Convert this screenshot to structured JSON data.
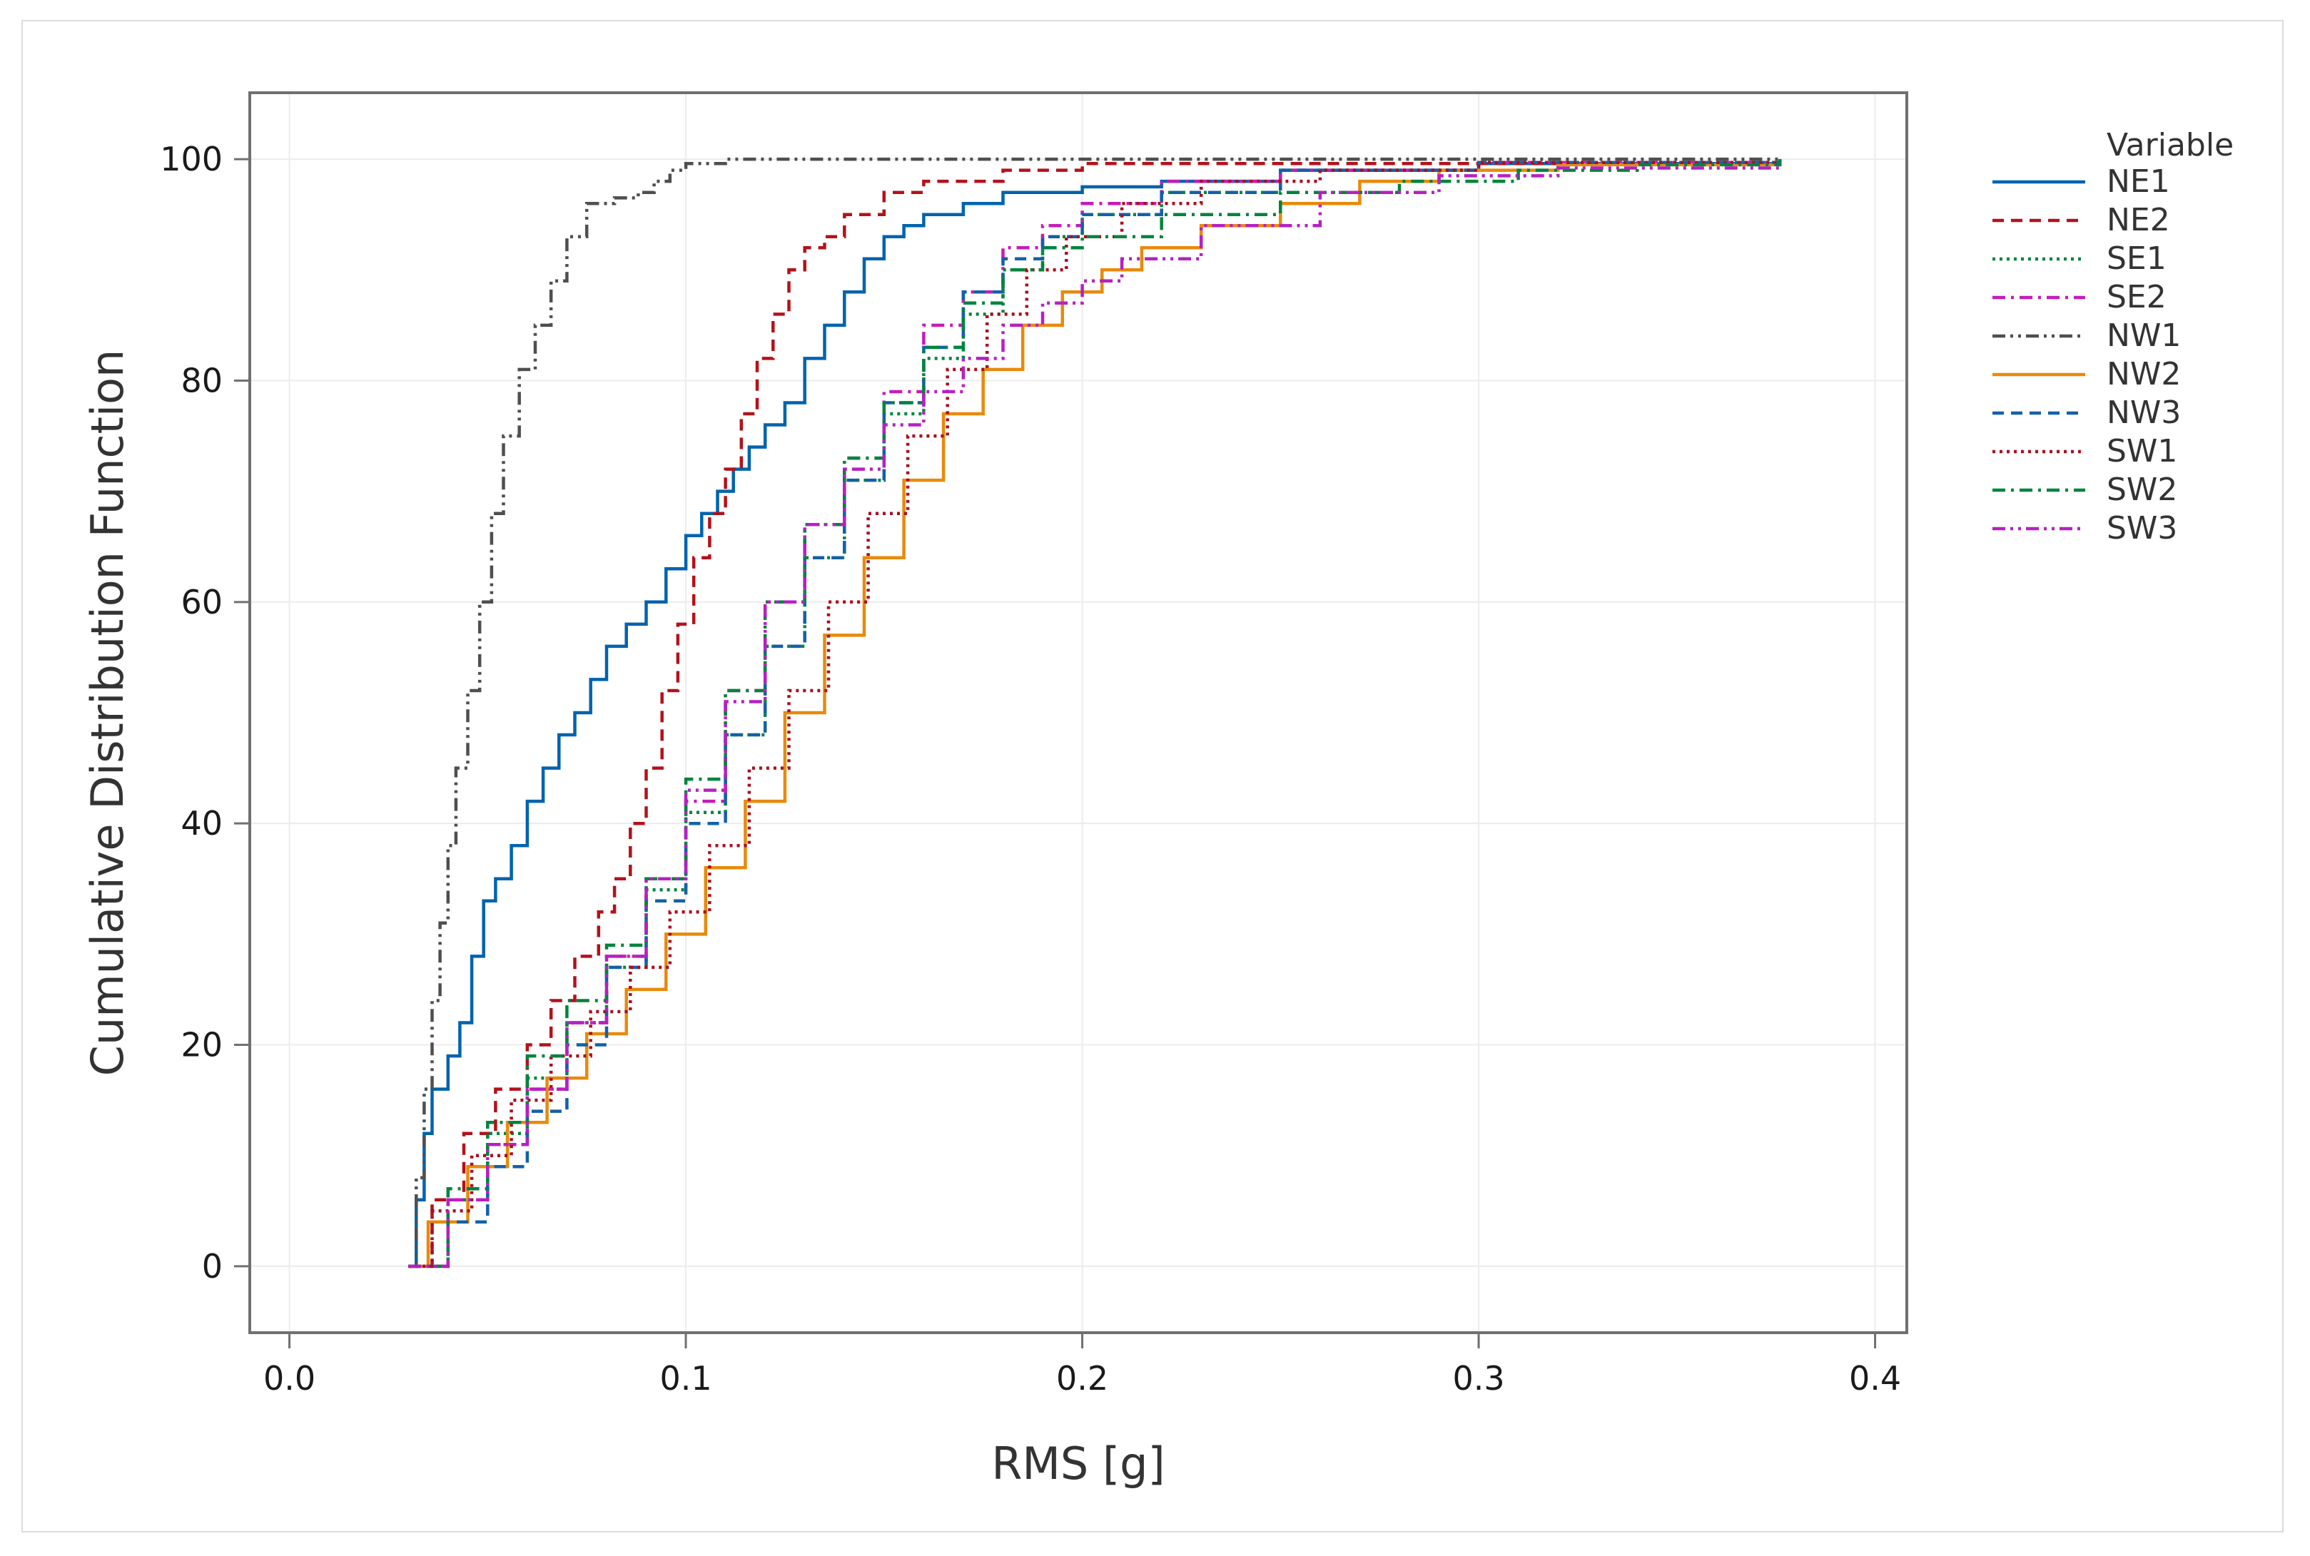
{
  "chart_data": {
    "type": "line",
    "subtype": "empirical-cdf",
    "xlabel": "RMS [g]",
    "ylabel": "Cumulative Distribution Function",
    "xlim": [
      -0.01,
      0.408
    ],
    "ylim": [
      -6,
      106
    ],
    "xticks": [
      0.0,
      0.1,
      0.2,
      0.3,
      0.4
    ],
    "xtick_labels": [
      "0.0",
      "0.1",
      "0.2",
      "0.3",
      "0.4"
    ],
    "yticks": [
      0,
      20,
      40,
      60,
      80,
      100
    ],
    "ytick_labels": [
      "0",
      "20",
      "40",
      "60",
      "80",
      "100"
    ],
    "grid": true,
    "legend": {
      "title": "Variable",
      "position": "right-top"
    },
    "series": [
      {
        "name": "NE1",
        "color": "#0063AE",
        "dash": "solid",
        "points": [
          [
            0.03,
            0
          ],
          [
            0.032,
            6
          ],
          [
            0.034,
            12
          ],
          [
            0.036,
            16
          ],
          [
            0.04,
            19
          ],
          [
            0.043,
            22
          ],
          [
            0.046,
            28
          ],
          [
            0.049,
            33
          ],
          [
            0.052,
            35
          ],
          [
            0.056,
            38
          ],
          [
            0.06,
            42
          ],
          [
            0.064,
            45
          ],
          [
            0.068,
            48
          ],
          [
            0.072,
            50
          ],
          [
            0.076,
            53
          ],
          [
            0.08,
            56
          ],
          [
            0.085,
            58
          ],
          [
            0.09,
            60
          ],
          [
            0.095,
            63
          ],
          [
            0.1,
            66
          ],
          [
            0.104,
            68
          ],
          [
            0.108,
            70
          ],
          [
            0.112,
            72
          ],
          [
            0.116,
            74
          ],
          [
            0.12,
            76
          ],
          [
            0.125,
            78
          ],
          [
            0.13,
            82
          ],
          [
            0.135,
            85
          ],
          [
            0.14,
            88
          ],
          [
            0.145,
            91
          ],
          [
            0.15,
            93
          ],
          [
            0.155,
            94
          ],
          [
            0.16,
            95
          ],
          [
            0.17,
            96
          ],
          [
            0.18,
            97
          ],
          [
            0.2,
            97.5
          ],
          [
            0.22,
            98
          ],
          [
            0.25,
            99
          ],
          [
            0.3,
            99.6
          ],
          [
            0.376,
            100
          ]
        ]
      },
      {
        "name": "NE2",
        "color": "#B3121B",
        "dash": "dashed",
        "points": [
          [
            0.03,
            0
          ],
          [
            0.036,
            6
          ],
          [
            0.044,
            12
          ],
          [
            0.052,
            16
          ],
          [
            0.06,
            20
          ],
          [
            0.066,
            24
          ],
          [
            0.072,
            28
          ],
          [
            0.078,
            32
          ],
          [
            0.082,
            35
          ],
          [
            0.086,
            40
          ],
          [
            0.09,
            45
          ],
          [
            0.094,
            52
          ],
          [
            0.098,
            58
          ],
          [
            0.102,
            64
          ],
          [
            0.106,
            68
          ],
          [
            0.11,
            72
          ],
          [
            0.114,
            77
          ],
          [
            0.118,
            82
          ],
          [
            0.122,
            86
          ],
          [
            0.126,
            90
          ],
          [
            0.13,
            92
          ],
          [
            0.135,
            93
          ],
          [
            0.14,
            95
          ],
          [
            0.15,
            97
          ],
          [
            0.16,
            98
          ],
          [
            0.18,
            99
          ],
          [
            0.2,
            99.6
          ],
          [
            0.376,
            100
          ]
        ]
      },
      {
        "name": "SE1",
        "color": "#00863E",
        "dash": "dotted",
        "points": [
          [
            0.03,
            0
          ],
          [
            0.04,
            6
          ],
          [
            0.05,
            12
          ],
          [
            0.06,
            17
          ],
          [
            0.07,
            22
          ],
          [
            0.08,
            27
          ],
          [
            0.09,
            34
          ],
          [
            0.1,
            41
          ],
          [
            0.11,
            48
          ],
          [
            0.12,
            56
          ],
          [
            0.13,
            64
          ],
          [
            0.14,
            71
          ],
          [
            0.15,
            77
          ],
          [
            0.16,
            82
          ],
          [
            0.17,
            86
          ],
          [
            0.18,
            90
          ],
          [
            0.19,
            93
          ],
          [
            0.2,
            95
          ],
          [
            0.22,
            97
          ],
          [
            0.25,
            99
          ],
          [
            0.3,
            99.7
          ],
          [
            0.376,
            100
          ]
        ]
      },
      {
        "name": "SE2",
        "color": "#C51CB8",
        "dash": "dashdot",
        "points": [
          [
            0.03,
            0
          ],
          [
            0.04,
            6
          ],
          [
            0.05,
            11
          ],
          [
            0.06,
            16
          ],
          [
            0.07,
            22
          ],
          [
            0.08,
            28
          ],
          [
            0.09,
            35
          ],
          [
            0.1,
            42
          ],
          [
            0.11,
            52
          ],
          [
            0.12,
            60
          ],
          [
            0.13,
            67
          ],
          [
            0.14,
            73
          ],
          [
            0.15,
            79
          ],
          [
            0.16,
            85
          ],
          [
            0.17,
            88
          ],
          [
            0.18,
            92
          ],
          [
            0.19,
            94
          ],
          [
            0.2,
            96
          ],
          [
            0.22,
            98
          ],
          [
            0.25,
            99
          ],
          [
            0.3,
            99.7
          ],
          [
            0.376,
            100
          ]
        ]
      },
      {
        "name": "NW1",
        "color": "#4F4F4F",
        "dash": "dashdotdot",
        "points": [
          [
            0.03,
            0
          ],
          [
            0.032,
            8
          ],
          [
            0.034,
            16
          ],
          [
            0.036,
            24
          ],
          [
            0.038,
            31
          ],
          [
            0.04,
            38
          ],
          [
            0.042,
            45
          ],
          [
            0.045,
            52
          ],
          [
            0.048,
            60
          ],
          [
            0.051,
            68
          ],
          [
            0.054,
            75
          ],
          [
            0.058,
            81
          ],
          [
            0.062,
            85
          ],
          [
            0.066,
            89
          ],
          [
            0.07,
            93
          ],
          [
            0.075,
            96
          ],
          [
            0.082,
            96.5
          ],
          [
            0.088,
            97
          ],
          [
            0.092,
            98
          ],
          [
            0.096,
            99
          ],
          [
            0.1,
            99.6
          ],
          [
            0.11,
            100
          ],
          [
            0.376,
            100
          ]
        ]
      },
      {
        "name": "NW2",
        "color": "#E88A0C",
        "dash": "solid",
        "points": [
          [
            0.03,
            0
          ],
          [
            0.035,
            4
          ],
          [
            0.045,
            9
          ],
          [
            0.055,
            13
          ],
          [
            0.065,
            17
          ],
          [
            0.075,
            21
          ],
          [
            0.085,
            25
          ],
          [
            0.095,
            30
          ],
          [
            0.105,
            36
          ],
          [
            0.115,
            42
          ],
          [
            0.125,
            50
          ],
          [
            0.135,
            57
          ],
          [
            0.145,
            64
          ],
          [
            0.155,
            71
          ],
          [
            0.165,
            77
          ],
          [
            0.175,
            81
          ],
          [
            0.185,
            85
          ],
          [
            0.195,
            88
          ],
          [
            0.205,
            90
          ],
          [
            0.215,
            92
          ],
          [
            0.23,
            94
          ],
          [
            0.25,
            96
          ],
          [
            0.27,
            98
          ],
          [
            0.29,
            99
          ],
          [
            0.32,
            99.5
          ],
          [
            0.376,
            100
          ]
        ]
      },
      {
        "name": "NW3",
        "color": "#1560A8",
        "dash": "dashed",
        "points": [
          [
            0.03,
            0
          ],
          [
            0.04,
            4
          ],
          [
            0.05,
            9
          ],
          [
            0.06,
            14
          ],
          [
            0.07,
            20
          ],
          [
            0.08,
            27
          ],
          [
            0.09,
            33
          ],
          [
            0.1,
            40
          ],
          [
            0.11,
            48
          ],
          [
            0.12,
            56
          ],
          [
            0.13,
            64
          ],
          [
            0.14,
            71
          ],
          [
            0.15,
            78
          ],
          [
            0.16,
            83
          ],
          [
            0.17,
            88
          ],
          [
            0.18,
            91
          ],
          [
            0.19,
            93
          ],
          [
            0.2,
            95
          ],
          [
            0.22,
            97
          ],
          [
            0.25,
            99
          ],
          [
            0.3,
            99.7
          ],
          [
            0.376,
            100
          ]
        ]
      },
      {
        "name": "SW1",
        "color": "#A80F1F",
        "dash": "dotted",
        "points": [
          [
            0.03,
            0
          ],
          [
            0.036,
            5
          ],
          [
            0.046,
            10
          ],
          [
            0.056,
            15
          ],
          [
            0.066,
            19
          ],
          [
            0.076,
            23
          ],
          [
            0.086,
            27
          ],
          [
            0.096,
            32
          ],
          [
            0.106,
            38
          ],
          [
            0.116,
            45
          ],
          [
            0.126,
            52
          ],
          [
            0.136,
            60
          ],
          [
            0.146,
            68
          ],
          [
            0.156,
            75
          ],
          [
            0.166,
            81
          ],
          [
            0.176,
            86
          ],
          [
            0.186,
            90
          ],
          [
            0.196,
            93
          ],
          [
            0.21,
            96
          ],
          [
            0.23,
            98
          ],
          [
            0.26,
            99
          ],
          [
            0.3,
            99.7
          ],
          [
            0.376,
            100
          ]
        ]
      },
      {
        "name": "SW2",
        "color": "#00843D",
        "dash": "dashdot",
        "points": [
          [
            0.03,
            0
          ],
          [
            0.04,
            7
          ],
          [
            0.05,
            13
          ],
          [
            0.06,
            19
          ],
          [
            0.07,
            24
          ],
          [
            0.08,
            29
          ],
          [
            0.09,
            35
          ],
          [
            0.1,
            44
          ],
          [
            0.11,
            52
          ],
          [
            0.12,
            60
          ],
          [
            0.13,
            67
          ],
          [
            0.14,
            73
          ],
          [
            0.15,
            78
          ],
          [
            0.16,
            83
          ],
          [
            0.17,
            87
          ],
          [
            0.18,
            90
          ],
          [
            0.19,
            92
          ],
          [
            0.2,
            93
          ],
          [
            0.22,
            95
          ],
          [
            0.25,
            97
          ],
          [
            0.28,
            98
          ],
          [
            0.31,
            99
          ],
          [
            0.34,
            99.5
          ],
          [
            0.376,
            100
          ]
        ]
      },
      {
        "name": "SW3",
        "color": "#B620C3",
        "dash": "dashdotdot",
        "points": [
          [
            0.03,
            0
          ],
          [
            0.04,
            6
          ],
          [
            0.05,
            11
          ],
          [
            0.06,
            16
          ],
          [
            0.07,
            22
          ],
          [
            0.08,
            28
          ],
          [
            0.09,
            35
          ],
          [
            0.1,
            43
          ],
          [
            0.11,
            51
          ],
          [
            0.12,
            60
          ],
          [
            0.13,
            67
          ],
          [
            0.14,
            72
          ],
          [
            0.15,
            76
          ],
          [
            0.16,
            79
          ],
          [
            0.17,
            82
          ],
          [
            0.18,
            85
          ],
          [
            0.19,
            87
          ],
          [
            0.2,
            89
          ],
          [
            0.21,
            91
          ],
          [
            0.23,
            94
          ],
          [
            0.26,
            97
          ],
          [
            0.29,
            98.5
          ],
          [
            0.32,
            99.2
          ],
          [
            0.376,
            99.6
          ]
        ]
      }
    ]
  }
}
